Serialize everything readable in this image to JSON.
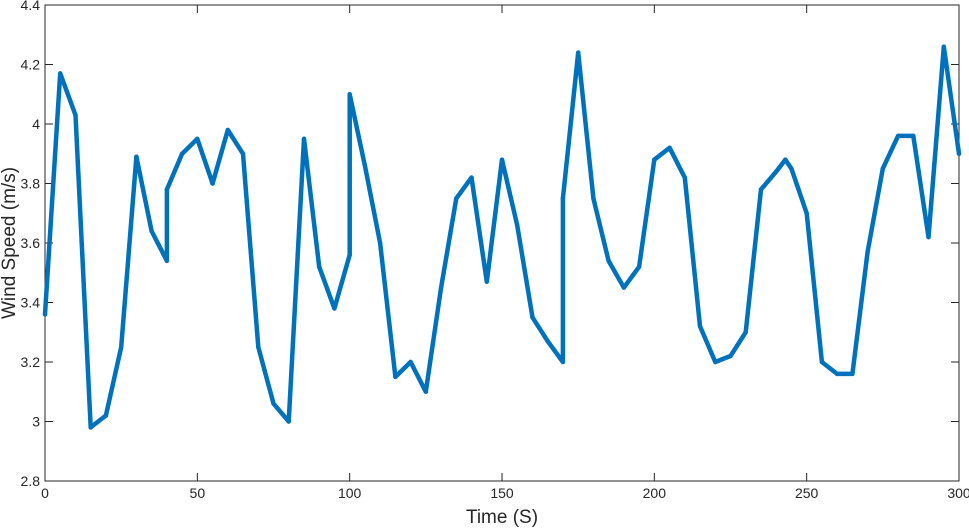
{
  "chart_data": {
    "type": "line",
    "title": "",
    "xlabel": "Time (S)",
    "ylabel": "Wind Speed (m/s)",
    "xlim": [
      0,
      300
    ],
    "ylim": [
      2.8,
      4.4
    ],
    "xticks": [
      0,
      50,
      100,
      150,
      200,
      250,
      300
    ],
    "yticks": [
      2.8,
      3,
      3.2,
      3.4,
      3.6,
      3.8,
      4,
      4.2,
      4.4
    ],
    "xtick_labels": [
      "0",
      "50",
      "100",
      "150",
      "200",
      "250",
      "300"
    ],
    "ytick_labels": [
      "2.8",
      "3",
      "3.2",
      "3.4",
      "3.6",
      "3.8",
      "4",
      "4.2",
      "4.4"
    ],
    "grid": false,
    "series": [
      {
        "color": "#0072BD",
        "x": [
          0,
          5,
          10,
          15,
          20,
          25,
          30,
          35,
          40,
          40,
          45,
          50,
          55,
          60,
          65,
          70,
          75,
          80,
          85,
          90,
          95,
          100,
          100,
          105,
          110,
          115,
          120,
          125,
          130,
          135,
          140,
          145,
          150,
          155,
          160,
          165,
          170,
          170,
          175,
          180,
          185,
          190,
          195,
          200,
          205,
          210,
          215,
          220,
          225,
          230,
          235,
          240,
          243,
          245,
          250,
          255,
          260,
          265,
          270,
          275,
          280,
          285,
          290,
          295,
          300
        ],
        "y": [
          3.36,
          4.17,
          4.03,
          2.98,
          3.02,
          3.25,
          3.89,
          3.64,
          3.54,
          3.78,
          3.9,
          3.95,
          3.8,
          3.98,
          3.9,
          3.25,
          3.06,
          3.0,
          3.95,
          3.52,
          3.38,
          3.56,
          4.1,
          3.86,
          3.6,
          3.15,
          3.2,
          3.1,
          3.45,
          3.75,
          3.82,
          3.47,
          3.88,
          3.66,
          3.35,
          3.27,
          3.2,
          3.75,
          4.24,
          3.75,
          3.54,
          3.45,
          3.52,
          3.88,
          3.92,
          3.82,
          3.32,
          3.2,
          3.22,
          3.3,
          3.78,
          3.84,
          3.88,
          3.85,
          3.7,
          3.2,
          3.16,
          3.16,
          3.57,
          3.85,
          3.96,
          3.96,
          3.62,
          4.26,
          3.9
        ]
      }
    ]
  }
}
